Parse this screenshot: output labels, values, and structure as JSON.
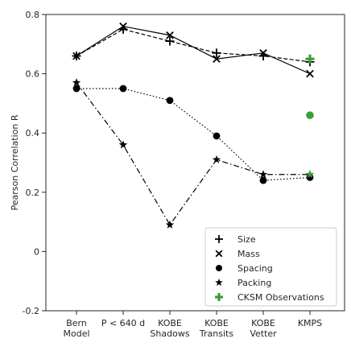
{
  "chart_data": {
    "type": "line",
    "title": "",
    "xlabel": "",
    "ylabel": "Pearson Correlation R",
    "ylim": [
      -0.2,
      0.8
    ],
    "yticks": [
      -0.2,
      0,
      0.2,
      0.4,
      0.6,
      0.8
    ],
    "ytick_labels": [
      "-0.2",
      "0",
      "0.2",
      "0.4",
      "0.6",
      "0.8"
    ],
    "categories": [
      [
        "Bern",
        "Model"
      ],
      [
        "P < 640 d"
      ],
      [
        "KOBE",
        "Shadows"
      ],
      [
        "KOBE",
        "Transits"
      ],
      [
        "KOBE",
        "Vetter"
      ],
      [
        "KMPS"
      ]
    ],
    "grid": false,
    "legend_position": "bottom-right",
    "series": [
      {
        "name": "Size",
        "marker": "plus",
        "line": "dashed",
        "color": "#000000",
        "values": [
          0.66,
          0.75,
          0.71,
          0.67,
          0.66,
          0.64
        ]
      },
      {
        "name": "Mass",
        "marker": "x",
        "line": "solid",
        "color": "#000000",
        "values": [
          0.66,
          0.76,
          0.73,
          0.65,
          0.67,
          0.6
        ]
      },
      {
        "name": "Spacing",
        "marker": "circle",
        "line": "dotted",
        "color": "#000000",
        "values": [
          0.55,
          0.55,
          0.51,
          0.39,
          0.24,
          0.25
        ]
      },
      {
        "name": "Packing",
        "marker": "star",
        "line": "dashdot",
        "color": "#000000",
        "values": [
          0.57,
          0.36,
          0.09,
          0.31,
          0.26,
          0.26
        ]
      }
    ],
    "observations": {
      "name": "CKSM Observations",
      "color": "#3a9e3a",
      "category_index": 5,
      "points": [
        {
          "marker": "plus",
          "value": 0.65
        },
        {
          "marker": "circle",
          "value": 0.46
        },
        {
          "marker": "star",
          "value": 0.26
        }
      ]
    }
  }
}
